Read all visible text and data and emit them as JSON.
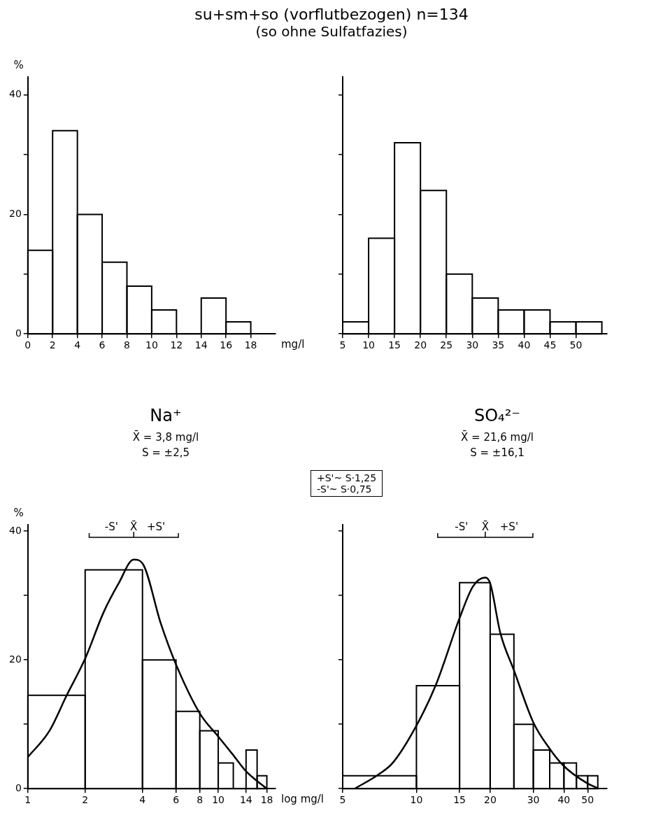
{
  "chart_data": [
    {
      "type": "histogram",
      "title": "su+sm+so (vorflutbezogen)  n=134",
      "subtitle": "(so ohne Sulfatfazies)",
      "ylabel": "%",
      "xlabel": "mg/l",
      "bins": [
        0,
        2,
        4,
        6,
        8,
        10,
        12,
        14,
        16,
        18
      ],
      "values": [
        14,
        34,
        20,
        12,
        8,
        4,
        0,
        6,
        2
      ],
      "color": "#000000",
      "xlim": [
        0,
        20
      ],
      "ylim": [
        0,
        43
      ],
      "xticks": [
        0,
        2,
        4,
        6,
        8,
        10,
        12,
        14,
        16,
        18
      ],
      "yticks": [
        0,
        {
          "value": 10,
          "label": null
        },
        20,
        {
          "value": 30,
          "label": null
        },
        40
      ],
      "grid": false
    },
    {
      "type": "histogram",
      "bins": [
        5,
        10,
        15,
        20,
        25,
        30,
        35,
        40,
        45,
        50,
        55
      ],
      "values": [
        2,
        16,
        32,
        24,
        10,
        6,
        4,
        4,
        2,
        2
      ],
      "color": "#000000",
      "xlim": [
        5,
        56
      ],
      "ylim": [
        0,
        43
      ],
      "xticks": [
        5,
        10,
        15,
        20,
        25,
        30,
        35,
        40,
        45,
        50
      ],
      "yticks": [
        {
          "value": 0,
          "label": null
        },
        {
          "value": 10,
          "label": null
        },
        {
          "value": 20,
          "label": null
        },
        {
          "value": 30,
          "label": null
        },
        {
          "value": 40,
          "label": null
        }
      ],
      "tick_labels": "x",
      "grid": false
    },
    {
      "type": "histogram",
      "title": "Na⁺",
      "subtitle": "X̄ = 3,8 mg/l",
      "annotations": [
        "S = ±2,5",
        "-S'",
        "X̄",
        "+S'"
      ],
      "ylabel": "%",
      "xlabel": "log mg/l",
      "log": "x",
      "bins": [
        1,
        2,
        4,
        6,
        8,
        10,
        12,
        14,
        16,
        18
      ],
      "values": [
        14.5,
        34,
        20,
        12,
        9,
        4,
        0,
        6,
        2
      ],
      "color": "#000000",
      "xlim": [
        1,
        20
      ],
      "ylim": [
        0,
        41
      ],
      "xticks": [
        1,
        2,
        4,
        6,
        8,
        10,
        14,
        18
      ],
      "yticks": [
        0,
        {
          "value": 10,
          "label": null
        },
        20,
        {
          "value": 30,
          "label": null
        },
        40
      ],
      "grid": false,
      "marker": "none",
      "series": [
        {
          "type": "line",
          "color": "#000000",
          "x": [
            1,
            1.3,
            1.6,
            2,
            2.5,
            3,
            3.6,
            4,
            5,
            6,
            8,
            10,
            12,
            14,
            18
          ],
          "values": [
            4.9,
            9,
            14.5,
            20.2,
            27.4,
            31.9,
            35.6,
            35,
            25.6,
            19.3,
            11.7,
            8.1,
            5.2,
            2.7,
            0
          ]
        }
      ]
    },
    {
      "type": "histogram",
      "title": "SO₄²⁻",
      "subtitle": "X̄ = 21,6 mg/l",
      "annotations": [
        "S = ±16,1",
        "+S'~ S·1,25",
        "-S'~ S·0,75",
        "-S'",
        "X̄",
        "+S'"
      ],
      "log": "x",
      "bins": [
        5,
        10,
        15,
        20,
        25,
        30,
        35,
        40,
        45,
        50,
        55
      ],
      "values": [
        2,
        16,
        32,
        24,
        10,
        6,
        4,
        4,
        2,
        2
      ],
      "color": "#000000",
      "xlim": [
        5,
        60
      ],
      "ylim": [
        0,
        41
      ],
      "xticks": [
        5,
        10,
        15,
        20,
        30,
        40,
        50
      ],
      "yticks": [
        {
          "value": 0,
          "label": null
        },
        {
          "value": 10,
          "label": null
        },
        {
          "value": 20,
          "label": null
        },
        {
          "value": 30,
          "label": null
        },
        {
          "value": 40,
          "label": null
        }
      ],
      "tick_labels": "x",
      "grid": false,
      "marker": "none",
      "series": [
        {
          "type": "line",
          "color": "#000000",
          "x": [
            5.6,
            7,
            8,
            10,
            12,
            15,
            17,
            19.1,
            20,
            22,
            25,
            30,
            35,
            40,
            50,
            55
          ],
          "values": [
            0,
            2.2,
            4,
            9.8,
            16.1,
            26.5,
            31.4,
            32.8,
            31.9,
            24.2,
            18.4,
            10.3,
            6.2,
            3.5,
            0.8,
            0.1
          ]
        }
      ]
    }
  ]
}
